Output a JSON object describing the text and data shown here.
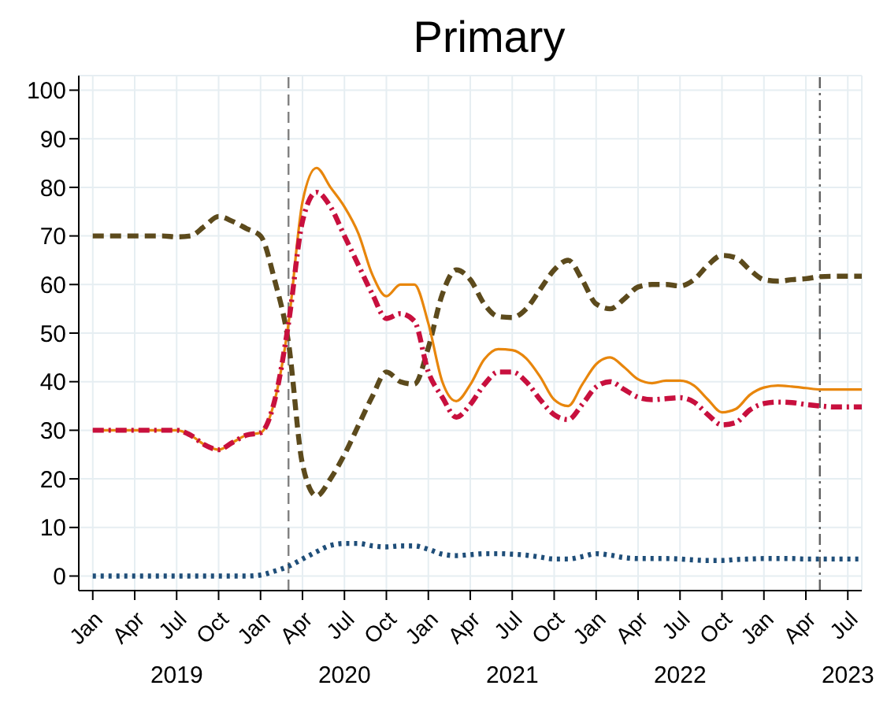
{
  "chart_data": {
    "type": "line",
    "title": "Primary",
    "x": [
      "2019-01",
      "2019-02",
      "2019-03",
      "2019-04",
      "2019-05",
      "2019-06",
      "2019-07",
      "2019-08",
      "2019-09",
      "2019-10",
      "2019-11",
      "2019-12",
      "2020-01",
      "2020-02",
      "2020-03",
      "2020-04",
      "2020-05",
      "2020-06",
      "2020-07",
      "2020-08",
      "2020-09",
      "2020-10",
      "2020-11",
      "2020-12",
      "2021-01",
      "2021-02",
      "2021-03",
      "2021-04",
      "2021-05",
      "2021-06",
      "2021-07",
      "2021-08",
      "2021-09",
      "2021-10",
      "2021-11",
      "2021-12",
      "2022-01",
      "2022-02",
      "2022-03",
      "2022-04",
      "2022-05",
      "2022-06",
      "2022-07",
      "2022-08",
      "2022-09",
      "2022-10",
      "2022-11",
      "2022-12",
      "2023-01",
      "2023-02",
      "2023-03",
      "2023-04",
      "2023-05",
      "2023-06",
      "2023-07",
      "2023-08"
    ],
    "series": [
      {
        "color": "#5c4a1c",
        "line_style": "dashed",
        "values": [
          70,
          70,
          70,
          70,
          70,
          70,
          69.8,
          70,
          72,
          74,
          73,
          71.5,
          70,
          61,
          48,
          23,
          16.5,
          20,
          25,
          31,
          37,
          42,
          40,
          39.5,
          47,
          58,
          63,
          61,
          56,
          53.4,
          53.2,
          55,
          59,
          63,
          65,
          61,
          56,
          55,
          57,
          59.5,
          60,
          60,
          59.7,
          61,
          64,
          66,
          65.5,
          63,
          61,
          60.7,
          61,
          61.2,
          61.6,
          61.7,
          61.7,
          61.7
        ]
      },
      {
        "color": "#e8860c",
        "line_style": "solid",
        "values": [
          30,
          30,
          30,
          30,
          30,
          30,
          30,
          29,
          27,
          26,
          27.5,
          29,
          29.5,
          36,
          52,
          77,
          84,
          80,
          76,
          70.5,
          62,
          57.6,
          60,
          60,
          52,
          40,
          36,
          39.4,
          44.6,
          46.7,
          46.5,
          44.8,
          41,
          36.3,
          35,
          39.4,
          43.6,
          45,
          43,
          40.5,
          39.7,
          40.2,
          40.2,
          39.2,
          36.3,
          33.7,
          34.4,
          37.3,
          38.8,
          39.2,
          39,
          38.7,
          38.4,
          38.4,
          38.4,
          38.4
        ]
      },
      {
        "color": "#c8103e",
        "line_style": "dashdot",
        "values": [
          30,
          30,
          30,
          30,
          30,
          30,
          30,
          29,
          27,
          26,
          27.5,
          29,
          29.5,
          36,
          52,
          73,
          79,
          76,
          70,
          64,
          58,
          53,
          54,
          52.5,
          42,
          36.8,
          32.7,
          35.3,
          39.4,
          42,
          42,
          40,
          36.3,
          33.2,
          32.2,
          35.3,
          38.9,
          40,
          38.4,
          36.8,
          36.3,
          36.5,
          36.7,
          35.8,
          33.2,
          31.1,
          31.6,
          34.2,
          35.5,
          35.8,
          35.7,
          35.3,
          35,
          34.8,
          34.8,
          34.8
        ]
      },
      {
        "color": "#1f4e79",
        "line_style": "dotted",
        "values": [
          0,
          0,
          0,
          0,
          0,
          0,
          0,
          0,
          0,
          0,
          0,
          0,
          0.2,
          1,
          2,
          3.5,
          5,
          6.3,
          6.7,
          6.7,
          6.2,
          6,
          6.2,
          6.2,
          5.5,
          4.5,
          4.2,
          4.4,
          4.6,
          4.6,
          4.5,
          4.3,
          3.9,
          3.5,
          3.5,
          4,
          4.6,
          4.3,
          3.8,
          3.6,
          3.6,
          3.6,
          3.5,
          3.3,
          3.2,
          3.2,
          3.4,
          3.5,
          3.6,
          3.6,
          3.6,
          3.5,
          3.5,
          3.5,
          3.5,
          3.5
        ]
      }
    ],
    "xlim": [
      "2018-12",
      "2023-08"
    ],
    "xticks": [
      {
        "value": "2019-01",
        "label": "Jan"
      },
      {
        "value": "2019-04",
        "label": "Apr"
      },
      {
        "value": "2019-07",
        "label": "Jul"
      },
      {
        "value": "2019-10",
        "label": "Oct"
      },
      {
        "value": "2020-01",
        "label": "Jan"
      },
      {
        "value": "2020-04",
        "label": "Apr"
      },
      {
        "value": "2020-07",
        "label": "Jul"
      },
      {
        "value": "2020-10",
        "label": "Oct"
      },
      {
        "value": "2021-01",
        "label": "Jan"
      },
      {
        "value": "2021-04",
        "label": "Apr"
      },
      {
        "value": "2021-07",
        "label": "Jul"
      },
      {
        "value": "2021-10",
        "label": "Oct"
      },
      {
        "value": "2022-01",
        "label": "Jan"
      },
      {
        "value": "2022-04",
        "label": "Apr"
      },
      {
        "value": "2022-07",
        "label": "Jul"
      },
      {
        "value": "2022-10",
        "label": "Oct"
      },
      {
        "value": "2023-01",
        "label": "Jan"
      },
      {
        "value": "2023-04",
        "label": "Apr"
      },
      {
        "value": "2023-07",
        "label": "Jul"
      }
    ],
    "x2lim": [
      "2018-12",
      "2023-08"
    ],
    "x2ticks": [
      {
        "value": "2019-07",
        "label": "2019"
      },
      {
        "value": "2020-07",
        "label": "2020"
      },
      {
        "value": "2021-07",
        "label": "2021"
      },
      {
        "value": "2022-07",
        "label": "2022"
      },
      {
        "value": "2023-07",
        "label": "2023"
      }
    ],
    "ylim": [
      -3,
      103
    ],
    "yticks": [
      0,
      10,
      20,
      30,
      40,
      50,
      60,
      70,
      80,
      90,
      100
    ],
    "ref_lines": [
      {
        "axis": "x",
        "value": "2020-03",
        "color": "#808080",
        "line_style": "dashed"
      },
      {
        "axis": "x",
        "value": "2023-05",
        "color": "#606060",
        "line_style": "dashdot"
      }
    ],
    "grid": true,
    "marker": "none"
  }
}
